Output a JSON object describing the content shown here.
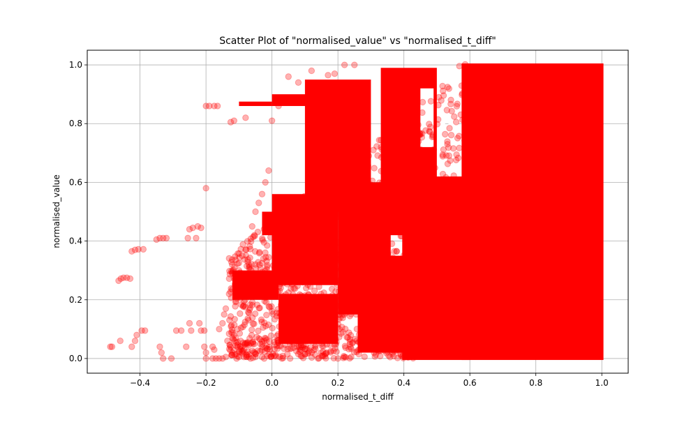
{
  "chart_data": {
    "type": "scatter",
    "title": "Scatter Plot of \"normalised_value\" vs \"normalised_t_diff\"",
    "xlabel": "normalised_t_diff",
    "ylabel": "normalised_value",
    "xlim": [
      -0.56,
      1.08
    ],
    "ylim": [
      -0.05,
      1.05
    ],
    "xticks": [
      -0.4,
      -0.2,
      0.0,
      0.2,
      0.4,
      0.6,
      0.8,
      1.0
    ],
    "xtick_labels": [
      "−0.4",
      "−0.2",
      "0.0",
      "0.2",
      "0.4",
      "0.6",
      "0.8",
      "1.0"
    ],
    "yticks": [
      0.0,
      0.2,
      0.4,
      0.6,
      0.8,
      1.0
    ],
    "ytick_labels": [
      "0.0",
      "0.2",
      "0.4",
      "0.6",
      "0.8",
      "1.0"
    ],
    "grid": true,
    "marker_color": "#ff0000",
    "marker_alpha": 0.3,
    "points": [
      [
        -0.49,
        0.04
      ],
      [
        -0.485,
        0.04
      ],
      [
        -0.46,
        0.06
      ],
      [
        -0.425,
        0.04
      ],
      [
        -0.415,
        0.06
      ],
      [
        -0.465,
        0.265
      ],
      [
        -0.458,
        0.272
      ],
      [
        -0.45,
        0.275
      ],
      [
        -0.44,
        0.275
      ],
      [
        -0.43,
        0.272
      ],
      [
        -0.425,
        0.365
      ],
      [
        -0.415,
        0.37
      ],
      [
        -0.405,
        0.372
      ],
      [
        -0.39,
        0.372
      ],
      [
        -0.41,
        0.08
      ],
      [
        -0.395,
        0.095
      ],
      [
        -0.385,
        0.095
      ],
      [
        -0.35,
        0.405
      ],
      [
        -0.34,
        0.41
      ],
      [
        -0.33,
        0.41
      ],
      [
        -0.32,
        0.41
      ],
      [
        -0.34,
        0.04
      ],
      [
        -0.335,
        0.02
      ],
      [
        -0.33,
        0.0
      ],
      [
        -0.305,
        0.0
      ],
      [
        -0.29,
        0.095
      ],
      [
        -0.275,
        0.095
      ],
      [
        -0.26,
        0.04
      ],
      [
        -0.25,
        0.12
      ],
      [
        -0.245,
        0.095
      ],
      [
        -0.255,
        0.41
      ],
      [
        -0.25,
        0.44
      ],
      [
        -0.24,
        0.445
      ],
      [
        -0.23,
        0.41
      ],
      [
        -0.225,
        0.45
      ],
      [
        -0.215,
        0.445
      ],
      [
        -0.22,
        0.12
      ],
      [
        -0.215,
        0.095
      ],
      [
        -0.205,
        0.095
      ],
      [
        -0.2,
        0.58
      ],
      [
        -0.205,
        0.04
      ],
      [
        -0.2,
        0.02
      ],
      [
        -0.2,
        0.0
      ],
      [
        -0.18,
        0.04
      ],
      [
        -0.175,
        0.03
      ],
      [
        -0.2,
        0.86
      ],
      [
        -0.19,
        0.86
      ],
      [
        -0.175,
        0.86
      ],
      [
        -0.165,
        0.86
      ],
      [
        -0.18,
        0.0
      ],
      [
        -0.17,
        0.0
      ],
      [
        -0.16,
        0.0
      ],
      [
        -0.15,
        0.0
      ],
      [
        -0.14,
        0.005
      ],
      [
        -0.16,
        0.1
      ],
      [
        -0.15,
        0.12
      ],
      [
        -0.145,
        0.15
      ],
      [
        -0.14,
        0.17
      ],
      [
        -0.13,
        0.22
      ],
      [
        -0.135,
        0.06
      ],
      [
        -0.12,
        0.07
      ],
      [
        -0.115,
        0.08
      ],
      [
        -0.105,
        0.04
      ],
      [
        -0.095,
        0.06
      ],
      [
        -0.125,
        0.805
      ],
      [
        -0.115,
        0.81
      ],
      [
        -0.08,
        0.82
      ],
      [
        -0.1,
        0.005
      ],
      [
        -0.085,
        0.005
      ],
      [
        -0.07,
        0.005
      ],
      [
        -0.05,
        0.005
      ],
      [
        -0.03,
        0.005
      ],
      [
        -0.12,
        0.29
      ],
      [
        -0.1,
        0.3
      ],
      [
        -0.09,
        0.35
      ],
      [
        -0.08,
        0.37
      ],
      [
        -0.07,
        0.32
      ],
      [
        -0.06,
        0.45
      ],
      [
        -0.05,
        0.5
      ],
      [
        -0.04,
        0.53
      ],
      [
        -0.03,
        0.56
      ],
      [
        -0.02,
        0.6
      ],
      [
        -0.01,
        0.64
      ],
      [
        0.0,
        0.81
      ],
      [
        0.02,
        0.86
      ],
      [
        0.03,
        0.0
      ],
      [
        0.055,
        0.0
      ],
      [
        0.08,
        0.015
      ],
      [
        0.1,
        0.015
      ],
      [
        0.14,
        0.0
      ],
      [
        0.2,
        0.0
      ],
      [
        0.22,
        0.005
      ],
      [
        0.24,
        0.005
      ],
      [
        0.05,
        0.96
      ],
      [
        0.08,
        0.94
      ],
      [
        0.12,
        0.98
      ],
      [
        0.17,
        0.965
      ],
      [
        0.19,
        0.97
      ],
      [
        0.22,
        1.0
      ],
      [
        0.25,
        1.0
      ]
    ]
  }
}
